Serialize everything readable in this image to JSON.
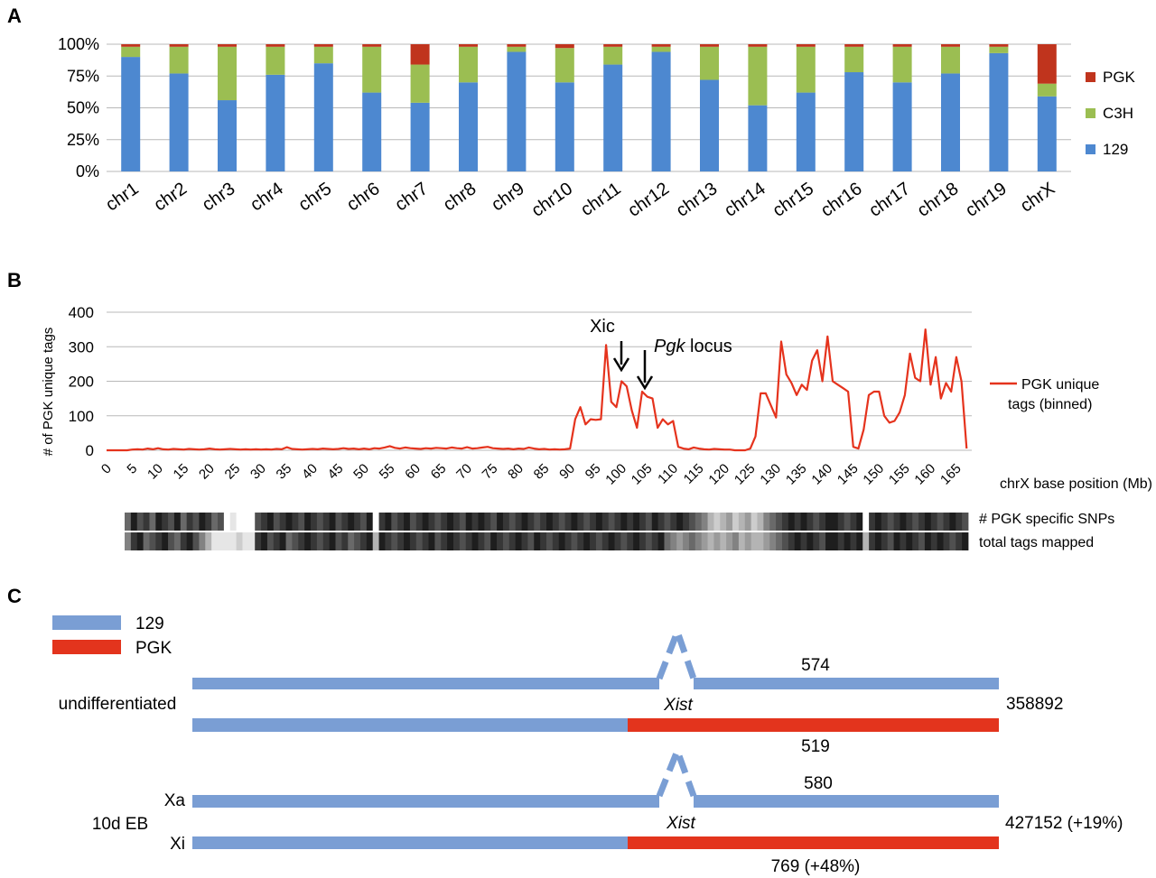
{
  "panel_labels": [
    "A",
    "B",
    "C"
  ],
  "chart_data": [
    {
      "type": "bar",
      "stacked": true,
      "categories": [
        "chr1",
        "chr2",
        "chr3",
        "chr4",
        "chr5",
        "chr6",
        "chr7",
        "chr8",
        "chr9",
        "chr10",
        "chr11",
        "chr12",
        "chr13",
        "chr14",
        "chr15",
        "chr16",
        "chr17",
        "chr18",
        "chr19",
        "chrX"
      ],
      "series": [
        {
          "name": "129",
          "color": "#4d88d0",
          "values": [
            90,
            77,
            56,
            76,
            85,
            62,
            54,
            70,
            94,
            70,
            84,
            94,
            72,
            52,
            62,
            78,
            70,
            77,
            93,
            59
          ]
        },
        {
          "name": "C3H",
          "color": "#9bbe52",
          "values": [
            8,
            21,
            42,
            22,
            13,
            36,
            30,
            28,
            4,
            27,
            14,
            4,
            26,
            46,
            36,
            20,
            28,
            21,
            5,
            10
          ]
        },
        {
          "name": "PGK",
          "color": "#c0341d",
          "values": [
            2,
            2,
            2,
            2,
            2,
            2,
            16,
            2,
            2,
            3,
            2,
            2,
            2,
            2,
            2,
            2,
            2,
            2,
            2,
            31
          ]
        }
      ],
      "yticks": [
        "0%",
        "25%",
        "50%",
        "75%",
        "100%"
      ],
      "ylim": [
        0,
        100
      ],
      "legend": {
        "position": "right",
        "order": [
          "PGK",
          "C3H",
          "129"
        ]
      },
      "grid": true
    },
    {
      "type": "line",
      "ylabel": "# of PGK unique tags",
      "xlabel": "chrX base position (Mb)",
      "ylim": [
        0,
        400
      ],
      "yticks": [
        "0",
        "100",
        "200",
        "300",
        "400"
      ],
      "xlim": [
        0,
        168
      ],
      "xticks": [
        "0",
        "5",
        "10",
        "15",
        "20",
        "25",
        "30",
        "35",
        "40",
        "45",
        "50",
        "55",
        "60",
        "65",
        "70",
        "75",
        "80",
        "85",
        "90",
        "95",
        "100",
        "105",
        "110",
        "115",
        "120",
        "125",
        "130",
        "135",
        "140",
        "145",
        "150",
        "155",
        "160",
        "165"
      ],
      "series": [
        {
          "name": "PGK unique tags (binned)",
          "color": "#e5331d",
          "x": [
            0,
            1,
            2,
            3,
            4,
            5,
            6,
            7,
            8,
            9,
            10,
            11,
            12,
            13,
            14,
            15,
            16,
            17,
            18,
            19,
            20,
            21,
            22,
            23,
            24,
            25,
            26,
            27,
            28,
            29,
            30,
            31,
            32,
            33,
            34,
            35,
            36,
            37,
            38,
            39,
            40,
            41,
            42,
            43,
            44,
            45,
            46,
            47,
            48,
            49,
            50,
            51,
            52,
            53,
            54,
            55,
            56,
            57,
            58,
            59,
            60,
            61,
            62,
            63,
            64,
            65,
            66,
            67,
            68,
            69,
            70,
            71,
            72,
            73,
            74,
            75,
            76,
            77,
            78,
            79,
            80,
            81,
            82,
            83,
            84,
            85,
            86,
            87,
            88,
            89,
            90,
            91,
            92,
            93,
            94,
            95,
            96,
            97,
            98,
            99,
            100,
            101,
            102,
            103,
            104,
            105,
            106,
            107,
            108,
            109,
            110,
            111,
            112,
            113,
            114,
            115,
            116,
            117,
            118,
            119,
            120,
            121,
            122,
            123,
            124,
            125,
            126,
            127,
            128,
            129,
            130,
            131,
            132,
            133,
            134,
            135,
            136,
            137,
            138,
            139,
            140,
            141,
            142,
            143,
            144,
            145,
            146,
            147,
            148,
            149,
            150,
            151,
            152,
            153,
            154,
            155,
            156,
            157,
            158,
            159,
            160,
            161,
            162,
            163,
            164,
            165,
            166,
            167
          ],
          "y": [
            0,
            0,
            0,
            0,
            0,
            2,
            3,
            2,
            5,
            3,
            6,
            3,
            2,
            4,
            3,
            2,
            4,
            3,
            2,
            3,
            5,
            3,
            2,
            3,
            4,
            3,
            2,
            3,
            2,
            3,
            2,
            3,
            2,
            4,
            3,
            9,
            4,
            3,
            2,
            3,
            4,
            3,
            5,
            4,
            3,
            4,
            6,
            4,
            5,
            3,
            5,
            3,
            6,
            5,
            8,
            12,
            7,
            5,
            8,
            6,
            5,
            4,
            6,
            5,
            7,
            6,
            5,
            8,
            6,
            5,
            9,
            5,
            6,
            8,
            10,
            6,
            5,
            4,
            5,
            3,
            5,
            4,
            8,
            5,
            3,
            4,
            2,
            3,
            2,
            3,
            5,
            90,
            125,
            75,
            90,
            88,
            90,
            305,
            140,
            125,
            200,
            185,
            115,
            65,
            170,
            155,
            150,
            65,
            90,
            75,
            85,
            10,
            5,
            3,
            8,
            5,
            3,
            2,
            4,
            3,
            2,
            2,
            0,
            0,
            0,
            5,
            40,
            165,
            165,
            130,
            95,
            315,
            220,
            195,
            160,
            190,
            175,
            260,
            290,
            200,
            330,
            200,
            190,
            180,
            170,
            10,
            5,
            60,
            160,
            170,
            170,
            100,
            80,
            85,
            110,
            160,
            280,
            210,
            200,
            350,
            190,
            270,
            150,
            195,
            170,
            270,
            200,
            5
          ]
        }
      ],
      "annotations": [
        {
          "text": "Xic",
          "x": 100
        },
        {
          "text": "Pgk",
          "italic_suffix": " locus",
          "x": 105
        }
      ]
    }
  ],
  "tracks": {
    "snp_label": "# PGK specific SNPs",
    "tags_label": "total tags mapped",
    "snp_density": [
      0.6,
      0.9,
      0.7,
      0.8,
      0.6,
      0.9,
      0.8,
      0.7,
      0.9,
      0.6,
      0.8,
      0.7,
      0.9,
      0.8,
      0.6,
      0.7,
      0.0,
      0.1,
      0.0,
      0.0,
      0.0,
      0.7,
      0.8,
      0.9,
      0.7,
      0.8,
      0.9,
      0.8,
      0.7,
      0.9,
      0.8,
      0.7,
      0.8,
      0.9,
      0.7,
      0.8,
      0.9,
      0.8,
      0.7,
      0.9,
      0.0,
      0.8,
      0.9,
      0.7,
      0.8,
      0.9,
      0.7,
      0.8,
      0.9,
      0.8,
      0.7,
      0.8,
      0.9,
      0.8,
      0.7,
      0.9,
      0.8,
      0.9,
      0.8,
      0.7,
      0.9,
      0.8,
      0.7,
      0.8,
      0.9,
      0.8,
      0.7,
      0.8,
      0.9,
      0.8,
      0.7,
      0.8,
      0.9,
      0.8,
      0.7,
      0.8,
      0.9,
      0.8,
      0.7,
      0.8,
      0.9,
      0.8,
      0.9,
      0.8,
      0.7,
      0.9,
      0.8,
      0.7,
      0.8,
      0.9,
      0.8,
      0.7,
      0.6,
      0.5,
      0.3,
      0.2,
      0.3,
      0.4,
      0.2,
      0.3,
      0.4,
      0.2,
      0.3,
      0.5,
      0.6,
      0.7,
      0.8,
      0.9,
      0.8,
      0.9,
      0.8,
      0.7,
      0.8,
      0.9,
      0.9,
      0.8,
      0.7,
      0.8,
      0.9,
      0.0,
      0.8,
      0.9,
      0.8,
      0.7,
      0.8,
      0.9,
      0.8,
      0.7,
      0.8,
      0.9,
      0.8,
      0.7,
      0.8,
      0.9,
      0.8,
      0.7
    ],
    "tags_density": [
      0.5,
      0.8,
      0.9,
      0.6,
      0.7,
      0.8,
      0.9,
      0.7,
      0.6,
      0.8,
      0.9,
      0.7,
      0.5,
      0.3,
      0.1,
      0.1,
      0.1,
      0.1,
      0.2,
      0.1,
      0.1,
      0.8,
      0.9,
      0.7,
      0.8,
      0.9,
      0.6,
      0.7,
      0.8,
      0.9,
      0.8,
      0.7,
      0.8,
      0.9,
      0.7,
      0.8,
      0.6,
      0.7,
      0.8,
      0.9,
      0.3,
      0.9,
      0.8,
      0.7,
      0.8,
      0.9,
      0.8,
      0.7,
      0.8,
      0.9,
      0.7,
      0.8,
      0.9,
      0.8,
      0.7,
      0.8,
      0.9,
      0.8,
      0.7,
      0.9,
      0.8,
      0.7,
      0.8,
      0.9,
      0.8,
      0.7,
      0.9,
      0.8,
      0.7,
      0.8,
      0.9,
      0.8,
      0.7,
      0.8,
      0.9,
      0.8,
      0.7,
      0.8,
      0.9,
      0.8,
      0.7,
      0.8,
      0.9,
      0.8,
      0.7,
      0.8,
      0.9,
      0.6,
      0.5,
      0.4,
      0.5,
      0.6,
      0.5,
      0.4,
      0.3,
      0.4,
      0.3,
      0.4,
      0.5,
      0.3,
      0.4,
      0.3,
      0.3,
      0.4,
      0.5,
      0.6,
      0.7,
      0.8,
      0.9,
      0.8,
      0.9,
      0.8,
      0.7,
      0.9,
      0.9,
      0.8,
      0.9,
      0.8,
      0.9,
      0.3,
      0.8,
      0.9,
      0.8,
      0.7,
      0.9,
      0.8,
      0.9,
      0.8,
      0.7,
      0.9,
      0.8,
      0.9,
      0.8,
      0.7,
      0.8,
      0.9
    ]
  },
  "panel_c": {
    "legend": [
      {
        "label": "129",
        "color": "#7a9ed4"
      },
      {
        "label": "PGK",
        "color": "#e3341d"
      }
    ],
    "groups": [
      {
        "label": "undifferentiated",
        "top_count": "574",
        "gene_label": "Xist",
        "bottom_count": "519",
        "total": "358892",
        "top_allele": "",
        "bottom_allele": ""
      },
      {
        "label": "10d EB",
        "top_count": "580",
        "gene_label": "Xist",
        "bottom_count": "769 (+48%)",
        "total": "427152 (+19%)",
        "top_allele": "Xa",
        "bottom_allele": "Xi"
      }
    ]
  }
}
